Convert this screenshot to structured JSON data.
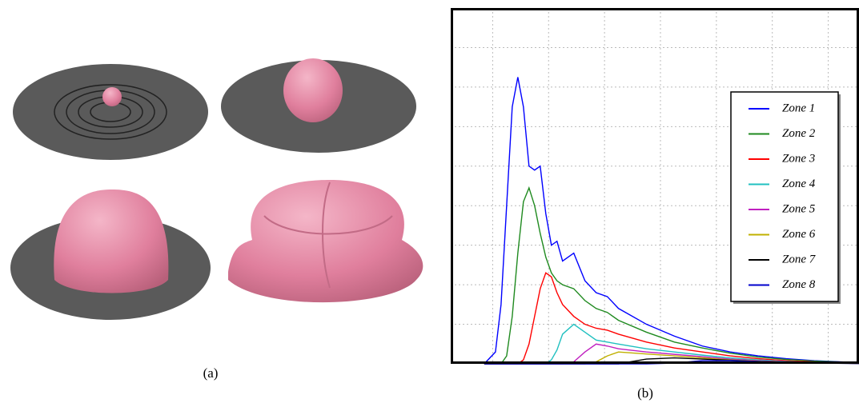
{
  "captions": {
    "a": "(a)",
    "b": "(b)"
  },
  "chart_data": {
    "type": "line",
    "x": [
      0.6,
      0.8,
      0.9,
      1.0,
      1.1,
      1.2,
      1.3,
      1.4,
      1.5,
      1.6,
      1.7,
      1.8,
      1.9,
      2.0,
      2.2,
      2.4,
      2.6,
      2.8,
      3.0,
      3.5,
      4.0,
      4.5,
      5.0,
      5.5,
      6.0,
      6.5,
      7.3
    ],
    "xlim": [
      0,
      7.3
    ],
    "ylim": [
      0,
      9
    ],
    "xticks": [
      0.75,
      1.75,
      2.75,
      3.75,
      4.75,
      5.75,
      6.75
    ],
    "yticks": [
      1,
      2,
      3,
      4,
      5,
      6,
      7,
      8
    ],
    "grid": true,
    "legend": "upper right",
    "series": [
      {
        "name": "Zone 1",
        "color": "#0000ff",
        "values": [
          0,
          0.3,
          1.5,
          4.0,
          6.5,
          7.25,
          6.5,
          5.0,
          4.9,
          5.0,
          3.8,
          3.0,
          3.1,
          2.6,
          2.8,
          2.1,
          1.8,
          1.7,
          1.4,
          1.0,
          0.7,
          0.45,
          0.3,
          0.2,
          0.13,
          0.08,
          0.03
        ]
      },
      {
        "name": "Zone 2",
        "color": "#1f8a1f",
        "values": [
          0,
          0,
          0,
          0.2,
          1.2,
          2.8,
          4.1,
          4.45,
          4.0,
          3.3,
          2.7,
          2.3,
          2.1,
          2.0,
          1.9,
          1.6,
          1.4,
          1.3,
          1.1,
          0.8,
          0.55,
          0.4,
          0.27,
          0.17,
          0.11,
          0.07,
          0.03
        ]
      },
      {
        "name": "Zone 3",
        "color": "#ff0000",
        "values": [
          0,
          0,
          0,
          0,
          0,
          0,
          0.1,
          0.5,
          1.2,
          1.9,
          2.3,
          2.2,
          1.8,
          1.5,
          1.2,
          1.0,
          0.9,
          0.85,
          0.75,
          0.55,
          0.4,
          0.3,
          0.2,
          0.13,
          0.08,
          0.05,
          0.02
        ]
      },
      {
        "name": "Zone 4",
        "color": "#20c0c0",
        "values": [
          0,
          0,
          0,
          0,
          0,
          0,
          0,
          0,
          0,
          0,
          0,
          0.1,
          0.35,
          0.75,
          1.0,
          0.8,
          0.6,
          0.55,
          0.5,
          0.38,
          0.3,
          0.22,
          0.15,
          0.1,
          0.06,
          0.04,
          0.02
        ]
      },
      {
        "name": "Zone 5",
        "color": "#c020c0",
        "values": [
          0,
          0,
          0,
          0,
          0,
          0,
          0,
          0,
          0,
          0,
          0,
          0,
          0,
          0,
          0.05,
          0.3,
          0.5,
          0.45,
          0.38,
          0.3,
          0.24,
          0.18,
          0.12,
          0.08,
          0.05,
          0.03,
          0.01
        ]
      },
      {
        "name": "Zone 6",
        "color": "#c0b000",
        "values": [
          0,
          0,
          0,
          0,
          0,
          0,
          0,
          0,
          0,
          0,
          0,
          0,
          0,
          0,
          0,
          0,
          0.05,
          0.2,
          0.3,
          0.25,
          0.2,
          0.15,
          0.1,
          0.07,
          0.04,
          0.03,
          0.01
        ]
      },
      {
        "name": "Zone 7",
        "color": "#000000",
        "values": [
          0,
          0,
          0,
          0,
          0,
          0,
          0,
          0,
          0,
          0,
          0,
          0,
          0,
          0,
          0,
          0,
          0,
          0,
          0,
          0.12,
          0.15,
          0.12,
          0.09,
          0.06,
          0.04,
          0.02,
          0.01
        ]
      },
      {
        "name": "Zone 8",
        "color": "#0000cc",
        "values": [
          0,
          0,
          0,
          0,
          0,
          0,
          0,
          0,
          0,
          0,
          0,
          0,
          0,
          0,
          0,
          0,
          0,
          0,
          0,
          0,
          0.02,
          0.08,
          0.08,
          0.06,
          0.04,
          0.02,
          0.01
        ]
      }
    ]
  }
}
